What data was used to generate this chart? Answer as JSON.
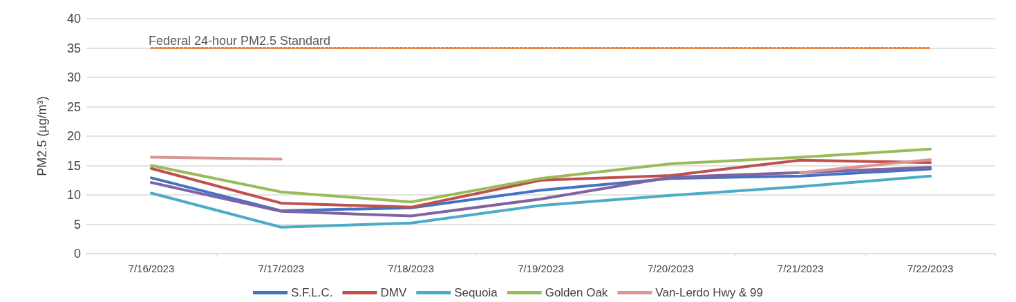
{
  "chart_data": {
    "type": "line",
    "ylabel": "PM2.5 (µg/m³)",
    "categories": [
      "7/16/2023",
      "7/17/2023",
      "7/18/2023",
      "7/19/2023",
      "7/20/2023",
      "7/21/2023",
      "7/22/2023"
    ],
    "series": [
      {
        "name": "S.F.L.C.",
        "color": "#4472c4",
        "values": [
          12.9,
          7.3,
          7.8,
          10.8,
          12.8,
          13.2,
          14.4
        ]
      },
      {
        "name": "DMV",
        "color": "#c0504d",
        "values": [
          14.5,
          8.6,
          7.9,
          12.5,
          13.3,
          15.9,
          15.5
        ]
      },
      {
        "color": "#8064a2",
        "values": [
          12.1,
          7.2,
          6.4,
          9.3,
          13.0,
          13.8,
          14.7
        ]
      },
      {
        "name": "Sequoia",
        "color": "#4bacc6",
        "values": [
          10.3,
          4.5,
          5.2,
          8.2,
          9.9,
          11.4,
          13.2
        ]
      },
      {
        "name": "Golden Oak",
        "color": "#9bbb59",
        "values": [
          15.0,
          10.5,
          8.8,
          12.8,
          15.3,
          16.4,
          17.8
        ]
      },
      {
        "name": "Van-Lerdo Hwy & 99",
        "color": "#d99694",
        "values": [
          16.4,
          16.1,
          null,
          null,
          null,
          13.8,
          16.0
        ]
      }
    ],
    "ylim": [
      0,
      40
    ],
    "yticks": [
      0,
      5,
      10,
      15,
      20,
      25,
      30,
      35,
      40
    ],
    "ref_lines": [
      {
        "axis": "y",
        "value": 35,
        "label": "Federal 24-hour PM2.5 Standard",
        "color": "#ed7d31",
        "line_style": "dotted"
      }
    ],
    "grid": "y",
    "legend": "bottom",
    "marker": "none",
    "line_style": "solid"
  }
}
